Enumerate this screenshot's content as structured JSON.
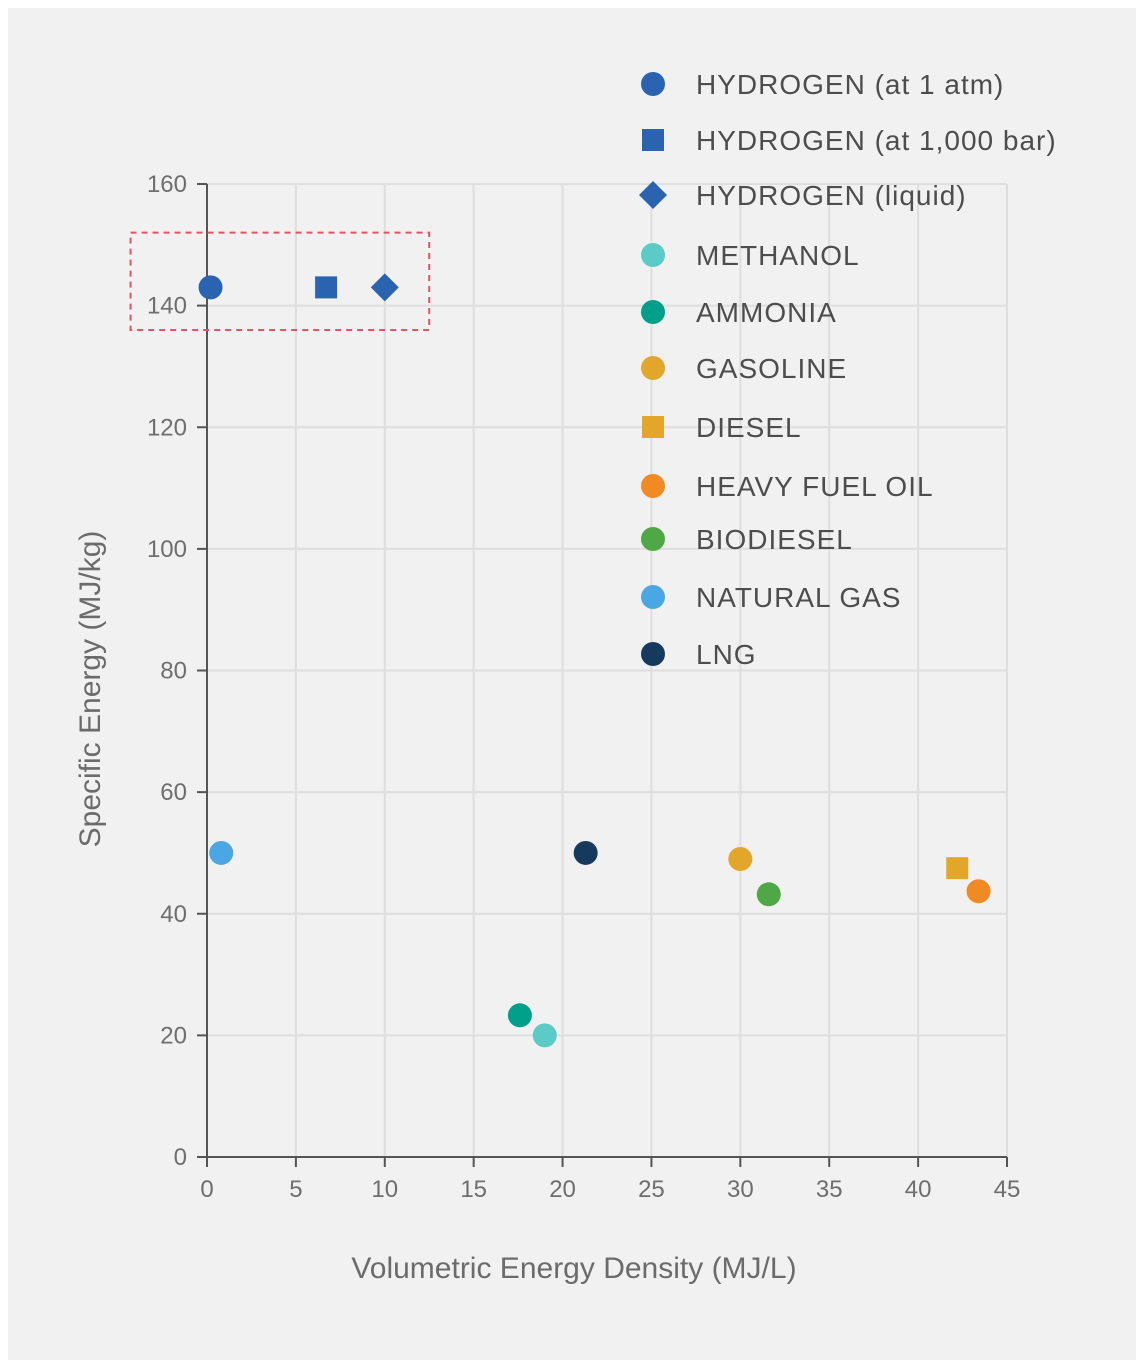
{
  "chart_data": {
    "type": "scatter",
    "title": "",
    "xlabel": "Volumetric Energy Density (MJ/L)",
    "ylabel": "Specific Energy (MJ/kg)",
    "xlim": [
      0,
      45
    ],
    "ylim": [
      0,
      160
    ],
    "xticks": [
      0,
      5,
      10,
      15,
      20,
      25,
      30,
      35,
      40,
      45
    ],
    "yticks": [
      0,
      20,
      40,
      60,
      80,
      100,
      120,
      140,
      160
    ],
    "grid": true,
    "legend_position": "top-right",
    "highlight_box": {
      "x_range": [
        -4.3,
        12.5
      ],
      "y_range": [
        136,
        152
      ],
      "style": "dashed",
      "color": "#e05565"
    },
    "series": [
      {
        "name": "HYDROGEN (at 1 atm)",
        "marker": "circle",
        "color": "#2a64b1",
        "x": 0.2,
        "y": 143
      },
      {
        "name": "HYDROGEN (at 1,000 bar)",
        "marker": "square",
        "color": "#2a64b1",
        "x": 6.7,
        "y": 143
      },
      {
        "name": "HYDROGEN (liquid)",
        "marker": "diamond",
        "color": "#2a64b1",
        "x": 10,
        "y": 143
      },
      {
        "name": "METHANOL",
        "marker": "circle",
        "color": "#5ccac6",
        "x": 19.0,
        "y": 20
      },
      {
        "name": "AMMONIA",
        "marker": "circle",
        "color": "#00a08a",
        "x": 17.6,
        "y": 23.3
      },
      {
        "name": "GASOLINE",
        "marker": "circle",
        "color": "#e2a72a",
        "x": 30.0,
        "y": 49
      },
      {
        "name": "DIESEL",
        "marker": "square",
        "color": "#e2a72a",
        "x": 42.2,
        "y": 47.5
      },
      {
        "name": "HEAVY FUEL OIL",
        "marker": "circle",
        "color": "#f08a24",
        "x": 43.4,
        "y": 43.7
      },
      {
        "name": "BIODIESEL",
        "marker": "circle",
        "color": "#4fa845",
        "x": 31.6,
        "y": 43.2
      },
      {
        "name": "NATURAL GAS",
        "marker": "circle",
        "color": "#4ba6e4",
        "x": 0.8,
        "y": 50
      },
      {
        "name": "LNG",
        "marker": "circle",
        "color": "#163a5e",
        "x": 21.3,
        "y": 50
      }
    ]
  }
}
